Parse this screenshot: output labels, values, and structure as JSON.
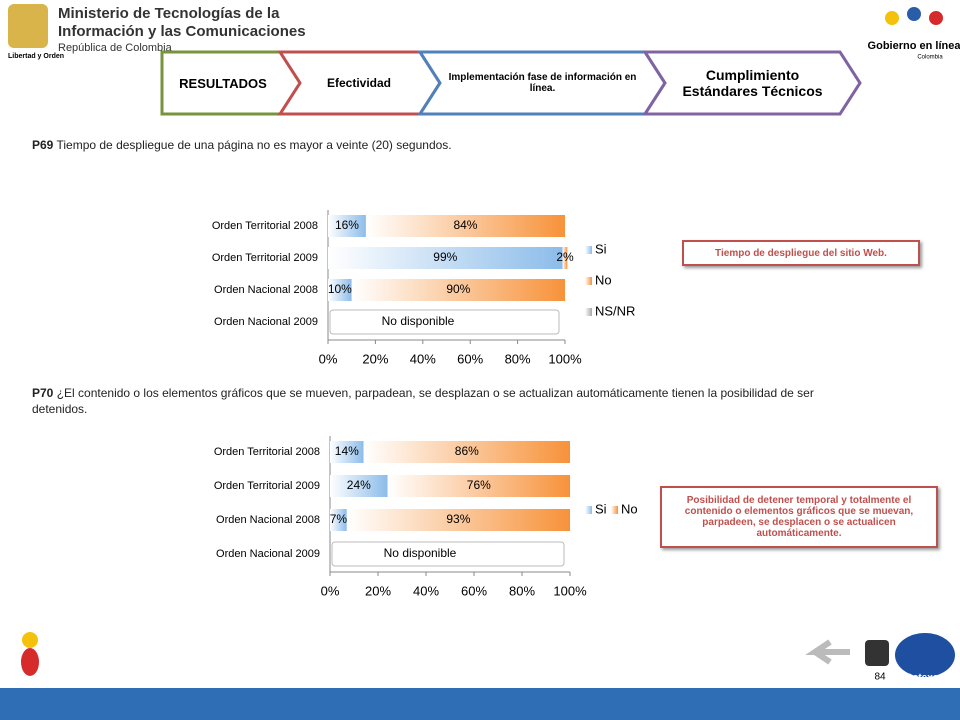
{
  "header": {
    "ministry_line1": "Ministerio de Tecnologías de la",
    "ministry_line2": "Información y las Comunicaciones",
    "ministry_line3": "República de Colombia",
    "motto": "Libertad y Orden",
    "brand": "Gobierno en línea",
    "brand_country": "Colombia"
  },
  "tabs": [
    "RESULTADOS",
    "Efectividad",
    "Implementación fase de información en línea.",
    "Cumplimiento Estándares Técnicos"
  ],
  "questions": [
    {
      "id": "P69",
      "text": "Tiempo de despliegue de una página no es mayor a veinte (20) segundos."
    },
    {
      "id": "P70",
      "text": "¿El contenido o los elementos gráficos que se mueven, parpadean, se desplazan o se actualizan automáticamente tienen la posibilidad de ser detenidos."
    }
  ],
  "callouts": [
    "Tiempo de despliegue del sitio Web.",
    "Posibilidad de detener temporal y totalmente el contenido o elementos gráficos que se muevan, parpadeen, se desplacen o se actualicen automáticamente."
  ],
  "chart_data": [
    {
      "type": "stacked-hbar",
      "categories": [
        "Orden Territorial 2008",
        "Orden Territorial 2009",
        "Orden Nacional 2008",
        "Orden Nacional 2009"
      ],
      "series": [
        {
          "name": "Si",
          "color": "#8cbcea",
          "values": [
            16,
            99,
            10,
            null
          ],
          "value_labels": [
            "16%",
            "99%",
            "10%",
            null
          ]
        },
        {
          "name": "No",
          "color": "#f7923a",
          "values": [
            84,
            2,
            90,
            null
          ],
          "value_labels": [
            "84%",
            "2%",
            "90%",
            null
          ]
        },
        {
          "name": "NS/NR",
          "color": "#a6a6a6",
          "values": [
            null,
            null,
            null,
            null
          ]
        }
      ],
      "annotation": "No disponible",
      "legend": "right",
      "xlim": [
        0,
        100
      ],
      "xticks": [
        {
          "value": 0,
          "label": "0%"
        },
        {
          "value": 20,
          "label": "20%"
        },
        {
          "value": 40,
          "label": "40%"
        },
        {
          "value": 60,
          "label": "60%"
        },
        {
          "value": 80,
          "label": "80%"
        },
        {
          "value": 100,
          "label": "100%"
        }
      ]
    },
    {
      "type": "stacked-hbar",
      "categories": [
        "Orden Territorial 2008",
        "Orden Territorial 2009",
        "Orden Nacional 2008",
        "Orden Nacional 2009"
      ],
      "series": [
        {
          "name": "Si",
          "color": "#8cbcea",
          "values": [
            14,
            24,
            7,
            null
          ],
          "value_labels": [
            "14%",
            "24%",
            "7%",
            null
          ]
        },
        {
          "name": "No",
          "color": "#f7923a",
          "values": [
            86,
            76,
            93,
            null
          ],
          "value_labels": [
            "86%",
            "76%",
            "93%",
            null
          ]
        }
      ],
      "annotation": "No disponible",
      "legend": "right",
      "xlim": [
        0,
        100
      ],
      "xticks": [
        {
          "value": 0,
          "label": "0%"
        },
        {
          "value": 20,
          "label": "20%"
        },
        {
          "value": 40,
          "label": "40%"
        },
        {
          "value": 60,
          "label": "60%"
        },
        {
          "value": 80,
          "label": "80%"
        },
        {
          "value": 100,
          "label": "100%"
        }
      ]
    }
  ],
  "footer": {
    "page": "84",
    "logo": "Datexco"
  }
}
